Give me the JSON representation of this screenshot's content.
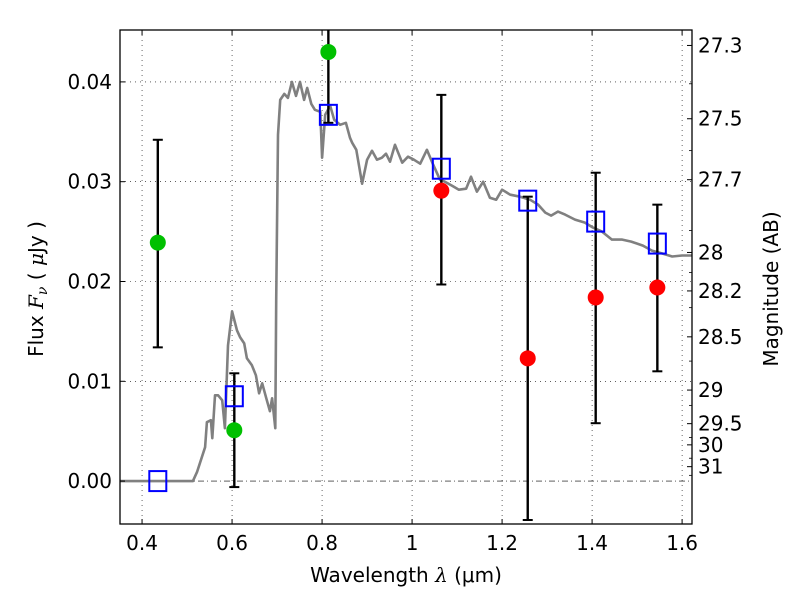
{
  "chart_data": {
    "type": "scatter",
    "title": "",
    "xlabel": "Wavelength  λ (μm)",
    "xlabel_parts": {
      "text": "Wavelength  ",
      "symbol": "λ",
      "unit": " (μm)"
    },
    "ylabel": "Flux  Fν  ( μJy )",
    "ylabel_parts": {
      "text": "Flux  ",
      "symbol": "F",
      "subscript": "ν",
      "unit_open": "  ( ",
      "unit_mu": "μ",
      "unit": "Jy )"
    },
    "y2label": "Magnitude (AB)",
    "xlim": [
      0.351,
      1.622
    ],
    "ylim": [
      -0.0043,
      0.0452
    ],
    "grid": true,
    "xticks": [
      0.4,
      0.6,
      0.8,
      1.0,
      1.2,
      1.4,
      1.6
    ],
    "xtick_labels": [
      "0.4",
      "0.6",
      "0.8",
      "1",
      "1.2",
      "1.4",
      "1.6"
    ],
    "yticks": [
      0.0,
      0.01,
      0.02,
      0.03,
      0.04
    ],
    "ytick_labels": [
      "0.00",
      "0.01",
      "0.02",
      "0.03",
      "0.04"
    ],
    "y2ticks": [
      27.3,
      27.5,
      27.7,
      28,
      28.2,
      28.5,
      29,
      29.5,
      30,
      31
    ],
    "y2tick_labels": [
      "27.3",
      "27.5",
      "27.7",
      "28",
      "28.2",
      "28.5",
      "29",
      "29.5",
      "30",
      "31"
    ],
    "y2_minor_ticks": [
      27.4,
      27.6,
      27.9,
      28.1,
      28.3,
      28.7,
      29.2,
      29.8,
      30.5,
      32
    ],
    "magnitude_zero_point": 23.9,
    "zero_line": {
      "y": 0.0,
      "style": "dash-dot"
    },
    "series": [
      {
        "name": "model-spectrum",
        "type": "line",
        "color": "#808080",
        "x": [
          0.351,
          0.513,
          0.522,
          0.54,
          0.544,
          0.553,
          0.556,
          0.562,
          0.569,
          0.578,
          0.584,
          0.591,
          0.6,
          0.611,
          0.618,
          0.627,
          0.633,
          0.644,
          0.653,
          0.66,
          0.667,
          0.676,
          0.684,
          0.689,
          0.696,
          0.698,
          0.702,
          0.707,
          0.716,
          0.724,
          0.733,
          0.742,
          0.751,
          0.76,
          0.767,
          0.776,
          0.784,
          0.796,
          0.8,
          0.807,
          0.818,
          0.827,
          0.84,
          0.853,
          0.862,
          0.867,
          0.876,
          0.889,
          0.9,
          0.911,
          0.922,
          0.933,
          0.942,
          0.951,
          0.962,
          0.978,
          0.991,
          1.004,
          1.018,
          1.033,
          1.047,
          1.062,
          1.073,
          1.089,
          1.104,
          1.12,
          1.131,
          1.144,
          1.158,
          1.173,
          1.187,
          1.2,
          1.218,
          1.24,
          1.262,
          1.28,
          1.296,
          1.309,
          1.324,
          1.34,
          1.362,
          1.384,
          1.402,
          1.422,
          1.444,
          1.467,
          1.487,
          1.513,
          1.533,
          1.556,
          1.578,
          1.6,
          1.622
        ],
        "y": [
          0.0,
          0.0,
          0.0009,
          0.0034,
          0.0059,
          0.0061,
          0.0043,
          0.0086,
          0.0086,
          0.0081,
          0.0053,
          0.0136,
          0.017,
          0.0151,
          0.0144,
          0.0138,
          0.0123,
          0.0116,
          0.0106,
          0.0088,
          0.0098,
          0.0083,
          0.007,
          0.0083,
          0.0053,
          0.0181,
          0.0347,
          0.0382,
          0.0388,
          0.0384,
          0.04,
          0.0386,
          0.04,
          0.0382,
          0.0394,
          0.0378,
          0.0372,
          0.037,
          0.0324,
          0.0367,
          0.0376,
          0.0362,
          0.0357,
          0.0359,
          0.0344,
          0.0339,
          0.0332,
          0.0298,
          0.0322,
          0.0331,
          0.0322,
          0.0324,
          0.0328,
          0.032,
          0.0337,
          0.0319,
          0.0325,
          0.0322,
          0.0318,
          0.0332,
          0.0317,
          0.0302,
          0.03,
          0.0296,
          0.0292,
          0.0293,
          0.0305,
          0.029,
          0.03,
          0.0284,
          0.0282,
          0.0292,
          0.0287,
          0.0285,
          0.0282,
          0.0277,
          0.0269,
          0.0266,
          0.027,
          0.0267,
          0.0262,
          0.0259,
          0.0254,
          0.025,
          0.0242,
          0.0242,
          0.024,
          0.0236,
          0.0231,
          0.0228,
          0.0225,
          0.0226,
          0.0226
        ]
      },
      {
        "name": "error-bars",
        "type": "errorbar",
        "color": "#000000",
        "x": [
          0.435,
          0.605,
          0.814,
          1.065,
          1.257,
          1.408,
          1.545
        ],
        "upper": [
          0.0342,
          0.0108,
          0.05,
          0.0387,
          0.0285,
          0.0309,
          0.0277
        ],
        "lower": [
          0.0134,
          -0.0006,
          0.0359,
          0.0197,
          -0.0039,
          0.0058,
          0.011
        ]
      },
      {
        "name": "model-photometry",
        "type": "scatter",
        "marker": "open-square",
        "color": "#0000ff",
        "x": [
          0.435,
          0.605,
          0.814,
          1.065,
          1.257,
          1.408,
          1.545
        ],
        "y": [
          0.0,
          0.0085,
          0.0367,
          0.0313,
          0.0281,
          0.026,
          0.0238
        ]
      },
      {
        "name": "observed-detections",
        "type": "scatter",
        "marker": "filled-circle",
        "color": "#00c000",
        "x": [
          0.435,
          0.605,
          0.814
        ],
        "y": [
          0.0239,
          0.0051,
          0.043
        ]
      },
      {
        "name": "observed-other",
        "type": "scatter",
        "marker": "filled-circle",
        "color": "#ff0000",
        "x": [
          1.065,
          1.257,
          1.408,
          1.545
        ],
        "y": [
          0.0291,
          0.0123,
          0.0184,
          0.0194
        ]
      }
    ]
  }
}
